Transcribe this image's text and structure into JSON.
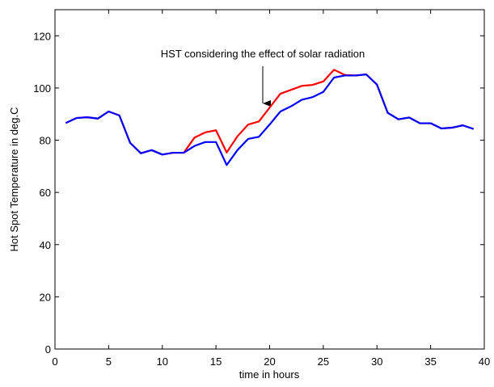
{
  "chart_data": {
    "type": "line",
    "xlabel": "time in hours",
    "ylabel": "Hot Spot Temperature in deg.C",
    "annotation": "HST considering the effect of solar radiation",
    "x": [
      1,
      2,
      3,
      4,
      5,
      6,
      7,
      8,
      9,
      10,
      11,
      12,
      13,
      14,
      15,
      16,
      17,
      18,
      19,
      20,
      21,
      22,
      23,
      24,
      25,
      26,
      27,
      28,
      29,
      30,
      31,
      32,
      33,
      34,
      35,
      36,
      37,
      38,
      39
    ],
    "series": [
      {
        "color": "#ff0000",
        "values": [
          86.6,
          88.5,
          88.8,
          88.3,
          91,
          89.5,
          79,
          75,
          76.2,
          74.5,
          75.2,
          75.2,
          81,
          83,
          83.8,
          75.3,
          81.5,
          86,
          87.2,
          92.5,
          97.8,
          99.3,
          100.8,
          101.2,
          102.5,
          107,
          105,
          104.8,
          105.2,
          101.3,
          90.5,
          88,
          88.7,
          86.5,
          86.5,
          84.5,
          84.8,
          85.7,
          84.3
        ]
      },
      {
        "color": "#0000ff",
        "values": [
          86.6,
          88.5,
          88.8,
          88.3,
          91,
          89.5,
          79,
          75,
          76.2,
          74.5,
          75.2,
          75.2,
          77.8,
          79.3,
          79.3,
          70.5,
          76.2,
          80.5,
          81.3,
          86,
          91,
          93,
          95.5,
          96.5,
          98.5,
          104,
          104.8,
          104.8,
          105.2,
          101.3,
          90.5,
          88,
          88.7,
          86.5,
          86.5,
          84.5,
          84.8,
          85.7,
          84.3
        ]
      }
    ],
    "xlim": [
      0,
      40
    ],
    "xticks": [
      0,
      5,
      10,
      15,
      20,
      25,
      30,
      35,
      40
    ],
    "ylim": [
      0,
      130
    ],
    "yticks": [
      0,
      20,
      40,
      60,
      80,
      100,
      120
    ],
    "grid": false
  }
}
